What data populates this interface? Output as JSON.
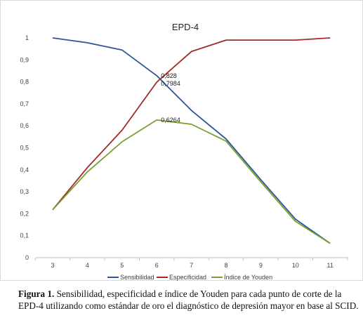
{
  "chart_data": {
    "type": "line",
    "title": "EPD-4",
    "x": [
      3,
      4,
      5,
      6,
      7,
      8,
      9,
      10,
      11
    ],
    "ylim": [
      0,
      1
    ],
    "yticks": [
      "0",
      "0,1",
      "0,2",
      "0,3",
      "0,4",
      "0,5",
      "0,6",
      "0,7",
      "0,8",
      "0,9",
      "1"
    ],
    "xticks": [
      "3",
      "4",
      "5",
      "6",
      "7",
      "8",
      "9",
      "10",
      "11"
    ],
    "grid": false,
    "legend_position": "bottom",
    "series": [
      {
        "name": "Sensibilidad",
        "color": "#2E5597",
        "values": [
          1.0,
          0.978,
          0.945,
          0.828,
          0.67,
          0.54,
          0.355,
          0.175,
          0.065
        ]
      },
      {
        "name": "Especificidad",
        "color": "#A32A2A",
        "values": [
          0.218,
          0.41,
          0.58,
          0.7984,
          0.938,
          0.99,
          0.99,
          0.99,
          1.0
        ]
      },
      {
        "name": "Índice de Youden",
        "color": "#77A02F",
        "values": [
          0.218,
          0.39,
          0.527,
          0.6264,
          0.607,
          0.53,
          0.345,
          0.165,
          0.065
        ]
      }
    ],
    "annotations": [
      {
        "text": "0,828",
        "x": 6,
        "y": 0.828
      },
      {
        "text": "0,7984",
        "x": 6,
        "y": 0.7984
      },
      {
        "text": "0,6264",
        "x": 6,
        "y": 0.6264
      }
    ]
  },
  "caption": {
    "label": "Figura 1.",
    "text": " Sensibilidad, especificidad e índice de Youden para cada punto de corte de la EPD-4 utilizando como estándar de oro el diagnóstico de depresión mayor en base al SCID."
  }
}
